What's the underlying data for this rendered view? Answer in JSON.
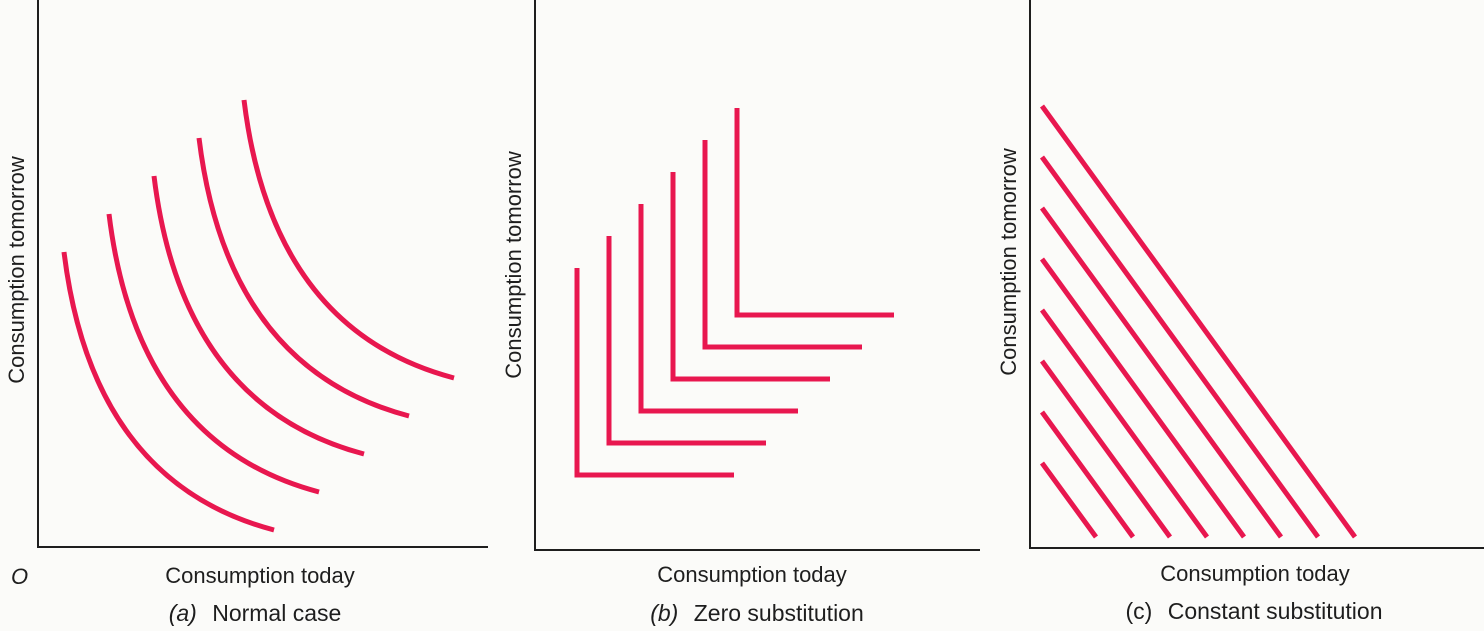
{
  "colors": {
    "curve": "#e8174f",
    "axis": "#1e1e1e",
    "background": "#fbfbf9"
  },
  "origin_label": "O",
  "chart_data": [
    {
      "type": "line",
      "xlabel": "Consumption today",
      "ylabel": "Consumption tomorrow",
      "caption_letter": "(a)",
      "caption_text": "Normal case",
      "curve_shape": "convex",
      "series_count": 5
    },
    {
      "type": "line",
      "xlabel": "Consumption today",
      "ylabel": "Consumption tomorrow",
      "caption_letter": "(b)",
      "caption_text": "Zero substitution",
      "curve_shape": "right-angle",
      "series_count": 6
    },
    {
      "type": "line",
      "xlabel": "Consumption today",
      "ylabel": "Consumption tomorrow",
      "caption_letter": "(c)",
      "caption_text": "Constant substitution",
      "curve_shape": "straight-line",
      "series_count": 8
    }
  ]
}
